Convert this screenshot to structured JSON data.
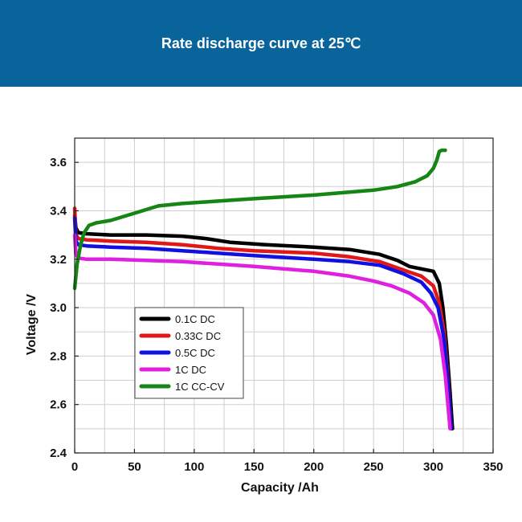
{
  "header": {
    "title": "Rate discharge curve at 25℃",
    "background": "#08649a"
  },
  "chart_data": {
    "type": "line",
    "title": "Rate discharge curve at 25℃",
    "xlabel": "Capacity /Ah",
    "ylabel": "Voltage /V",
    "xlim": [
      0,
      350
    ],
    "ylim": [
      2.4,
      3.7
    ],
    "xticks": [
      0,
      50,
      100,
      150,
      200,
      250,
      300,
      350
    ],
    "yticks": [
      2.4,
      2.6,
      2.8,
      3.0,
      3.2,
      3.4,
      3.6
    ],
    "ytick_labels": [
      "2.4",
      "2.6",
      "2.8",
      "3.0",
      "3.2",
      "3.4",
      "3.6"
    ],
    "grid": true,
    "legend_position": "lower-left",
    "series": [
      {
        "name": "0.1C DC",
        "color": "#000000",
        "x": [
          0,
          1,
          3,
          10,
          30,
          60,
          90,
          110,
          130,
          160,
          200,
          230,
          255,
          270,
          280,
          300,
          305,
          308,
          311,
          314,
          316
        ],
        "y": [
          3.38,
          3.33,
          3.31,
          3.305,
          3.3,
          3.3,
          3.295,
          3.285,
          3.27,
          3.26,
          3.25,
          3.24,
          3.22,
          3.195,
          3.17,
          3.15,
          3.1,
          3.0,
          2.85,
          2.65,
          2.5
        ]
      },
      {
        "name": "0.33C DC",
        "color": "#e01818",
        "x": [
          0,
          1,
          3,
          10,
          30,
          60,
          90,
          120,
          150,
          200,
          230,
          255,
          275,
          290,
          300,
          305,
          309,
          312,
          315
        ],
        "y": [
          3.41,
          3.3,
          3.285,
          3.28,
          3.275,
          3.27,
          3.26,
          3.245,
          3.235,
          3.225,
          3.21,
          3.19,
          3.155,
          3.13,
          3.09,
          3.02,
          2.9,
          2.72,
          2.5
        ]
      },
      {
        "name": "0.5C DC",
        "color": "#1010e0",
        "x": [
          0,
          1,
          3,
          10,
          30,
          60,
          90,
          120,
          150,
          200,
          230,
          255,
          275,
          290,
          298,
          304,
          309,
          312,
          315
        ],
        "y": [
          3.37,
          3.275,
          3.26,
          3.255,
          3.25,
          3.245,
          3.235,
          3.225,
          3.215,
          3.2,
          3.19,
          3.175,
          3.14,
          3.105,
          3.06,
          3.0,
          2.87,
          2.7,
          2.5
        ]
      },
      {
        "name": "1C DC",
        "color": "#e020e0",
        "x": [
          0,
          1,
          3,
          10,
          30,
          60,
          90,
          120,
          150,
          200,
          230,
          250,
          265,
          280,
          292,
          300,
          306,
          310,
          314
        ],
        "y": [
          3.3,
          3.22,
          3.205,
          3.2,
          3.2,
          3.195,
          3.19,
          3.18,
          3.17,
          3.15,
          3.13,
          3.11,
          3.09,
          3.06,
          3.02,
          2.97,
          2.87,
          2.72,
          2.5
        ]
      },
      {
        "name": "1C CC-CV",
        "color": "#158515",
        "x": [
          0,
          2,
          5,
          8,
          12,
          18,
          30,
          50,
          70,
          90,
          120,
          150,
          200,
          250,
          270,
          285,
          295,
          300,
          303,
          305,
          307,
          310
        ],
        "y": [
          3.08,
          3.18,
          3.26,
          3.31,
          3.34,
          3.35,
          3.36,
          3.39,
          3.42,
          3.43,
          3.44,
          3.45,
          3.465,
          3.485,
          3.5,
          3.52,
          3.545,
          3.575,
          3.61,
          3.645,
          3.65,
          3.65
        ]
      }
    ]
  }
}
